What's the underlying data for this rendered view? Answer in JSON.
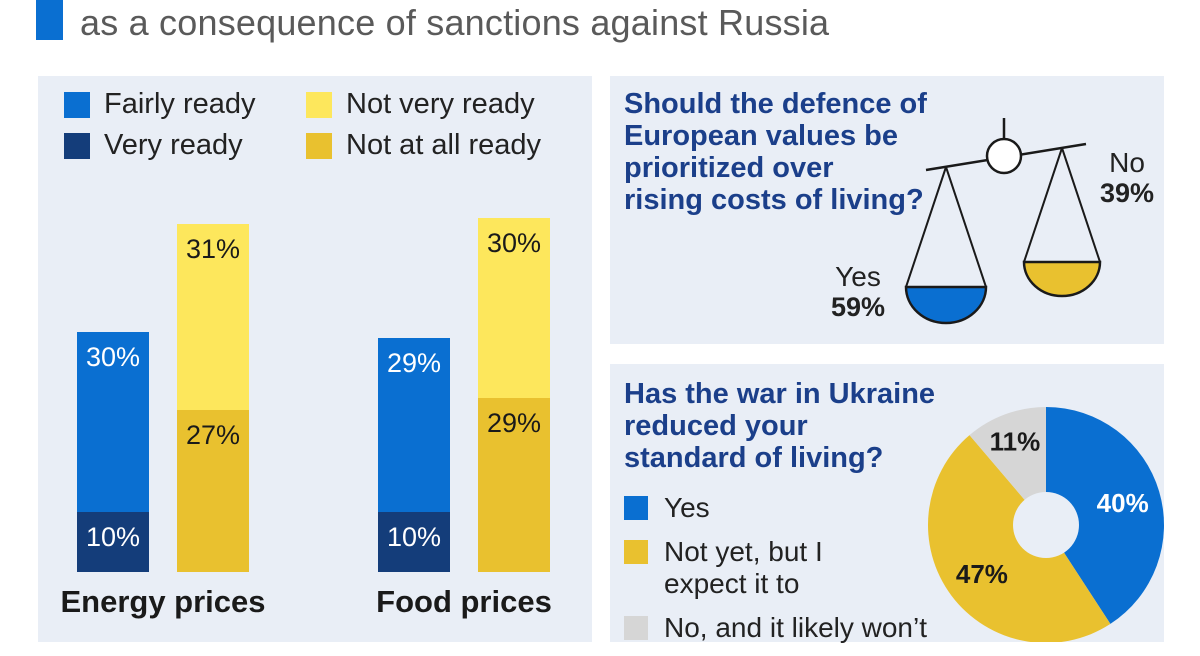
{
  "title": {
    "line": "as a consequence of sanctions against Russia"
  },
  "colors": {
    "fairly_ready": "#0a6fd1",
    "very_ready": "#143d7a",
    "not_very_ready": "#fde75c",
    "not_at_all_ready": "#e9c12f",
    "no_unlikely": "#d6d6d6",
    "accent": "#0a6fd1",
    "question_text": "#1b3f8a"
  },
  "legend": [
    {
      "label": "Fairly ready",
      "color": "#0a6fd1"
    },
    {
      "label": "Not very ready",
      "color": "#fde75c"
    },
    {
      "label": "Very ready",
      "color": "#143d7a"
    },
    {
      "label": "Not at all ready",
      "color": "#e9c12f"
    }
  ],
  "chart_data": [
    {
      "type": "bar",
      "stacked": true,
      "categories": [
        "Energy prices",
        "Food prices"
      ],
      "series": [
        {
          "name": "Very ready",
          "group": "ready",
          "values": [
            10,
            10
          ],
          "labels": [
            "10%",
            "10%"
          ],
          "color": "#143d7a"
        },
        {
          "name": "Fairly ready",
          "group": "ready",
          "values": [
            30,
            29
          ],
          "labels": [
            "30%",
            "29%"
          ],
          "color": "#0a6fd1"
        },
        {
          "name": "Not at all ready",
          "group": "not_ready",
          "values": [
            27,
            29
          ],
          "labels": [
            "27%",
            "29%"
          ],
          "color": "#e9c12f"
        },
        {
          "name": "Not very ready",
          "group": "not_ready",
          "values": [
            31,
            30
          ],
          "labels": [
            "31%",
            "30%"
          ],
          "color": "#fde75c"
        }
      ],
      "legend_position": "top"
    },
    {
      "type": "pie",
      "donut": true,
      "title": "Has the war in Ukraine reduced your standard of living?",
      "slices": [
        {
          "label": "Yes",
          "value": 40,
          "value_label": "40%",
          "color": "#0a6fd1"
        },
        {
          "label": "Not yet, but I expect it to",
          "value": 47,
          "value_label": "47%",
          "color": "#e9c12f"
        },
        {
          "label": "No, and it likely won’t",
          "value": 11,
          "value_label": "11%",
          "color": "#d6d6d6"
        }
      ]
    }
  ],
  "scale_question": {
    "title_lines": [
      "Should the defence of",
      "European values be",
      "prioritized over",
      "rising costs of living?"
    ],
    "yes_label": "Yes",
    "yes_value": "59%",
    "no_label": "No",
    "no_value": "39%"
  },
  "pie_question": {
    "title_lines": [
      "Has the war in Ukraine",
      "reduced your",
      "standard of living?"
    ],
    "legend": [
      {
        "lines": [
          "Yes"
        ],
        "color": "#0a6fd1"
      },
      {
        "lines": [
          "Not yet, but I",
          "expect it to"
        ],
        "color": "#e9c12f"
      },
      {
        "lines": [
          "No, and it likely won’t"
        ],
        "color": "#d6d6d6"
      }
    ]
  }
}
